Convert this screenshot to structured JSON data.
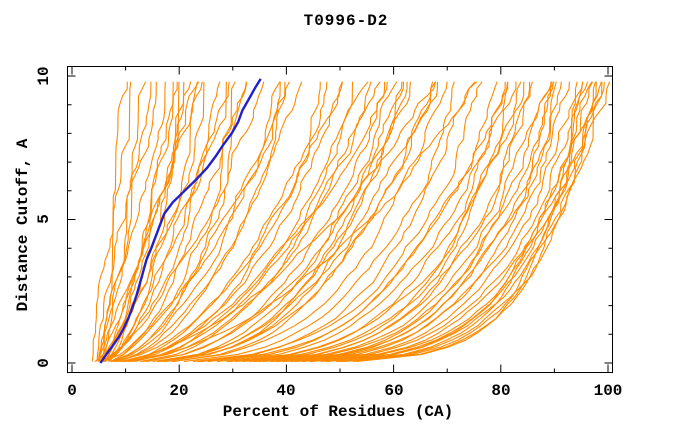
{
  "title": "T0996-D2",
  "axes": {
    "x": {
      "label": "Percent of Residues (CA)",
      "tick_labels": [
        "0",
        "20",
        "40",
        "60",
        "80",
        "100"
      ],
      "tick_values": [
        0,
        20,
        40,
        60,
        80,
        100
      ],
      "minor_tick_values": [
        10,
        30,
        50,
        70,
        90
      ]
    },
    "y": {
      "label": "Distance Cutoff, A",
      "tick_labels": [
        "0",
        "5",
        "10"
      ],
      "tick_values": [
        0,
        5,
        10
      ],
      "minor_tick_values": [
        1,
        2,
        3,
        4,
        6,
        7,
        8,
        9
      ]
    }
  },
  "colors": {
    "background": "#ffffff",
    "axis": "#000000",
    "orange_curves": "#ff8a00",
    "blue_curve": "#2121cc"
  },
  "chart_data": {
    "type": "line",
    "title": "T0996-D2",
    "xlabel": "Percent of Residues (CA)",
    "ylabel": "Distance Cutoff, A",
    "xlim": [
      0,
      100
    ],
    "ylim": [
      0,
      10
    ],
    "grid": false,
    "legend": false,
    "x_major_ticks": [
      0,
      20,
      40,
      60,
      80,
      100
    ],
    "x_minor_ticks": [
      10,
      30,
      50,
      70,
      90
    ],
    "y_major_ticks": [
      0,
      5,
      10
    ],
    "y_minor_ticks": [
      1,
      2,
      3,
      4,
      6,
      7,
      8,
      9
    ],
    "cutoff_max": 9.9,
    "blue_curve": {
      "color": "#2121cc",
      "points_cutoff_percent": [
        [
          0,
          5.3
        ],
        [
          0.3,
          6.4
        ],
        [
          0.6,
          7.6
        ],
        [
          0.9,
          8.7
        ],
        [
          1.2,
          9.6
        ],
        [
          1.6,
          10.6
        ],
        [
          2.0,
          11.4
        ],
        [
          2.4,
          12.1
        ],
        [
          2.8,
          12.7
        ],
        [
          3.2,
          13.3
        ],
        [
          3.6,
          13.9
        ],
        [
          4.0,
          14.8
        ],
        [
          4.4,
          15.6
        ],
        [
          4.8,
          16.4
        ],
        [
          5.2,
          17.2
        ],
        [
          5.6,
          18.8
        ],
        [
          6.0,
          21.0
        ],
        [
          6.4,
          23.2
        ],
        [
          6.8,
          25.2
        ],
        [
          7.2,
          26.8
        ],
        [
          7.6,
          28.2
        ],
        [
          8.0,
          29.8
        ],
        [
          8.4,
          31.0
        ],
        [
          8.8,
          31.8
        ],
        [
          9.2,
          33.0
        ],
        [
          9.6,
          34.2
        ],
        [
          9.9,
          35.2
        ]
      ]
    },
    "orange_curves": {
      "color": "#ff8a00",
      "curve_model": "percent(c) = p0 + (pEnd - p0) * (c / 9.9)^k  (+ small jitter), c = 0.05..9.9",
      "param_format": [
        "p0_percent_at_cutoff0",
        "pEnd_percent_at_cutoff_max",
        "shape_exponent_k",
        "jitter_seed"
      ],
      "curves": [
        [
          5,
          11.5,
          1.1,
          1
        ],
        [
          5.5,
          13,
          0.95,
          2
        ],
        [
          4.5,
          14,
          1.2,
          3
        ],
        [
          6,
          15,
          0.9,
          4
        ],
        [
          5,
          16.5,
          1.05,
          5
        ],
        [
          4,
          12.5,
          1.0,
          6
        ],
        [
          5,
          19,
          0.8,
          7
        ],
        [
          6,
          21,
          0.7,
          8
        ],
        [
          4.5,
          22,
          0.75,
          9
        ],
        [
          5.5,
          23.5,
          0.65,
          10
        ],
        [
          6.5,
          25,
          0.8,
          11
        ],
        [
          5,
          26,
          0.6,
          12
        ],
        [
          4,
          27,
          0.7,
          13
        ],
        [
          6,
          28.5,
          0.62,
          14
        ],
        [
          5.5,
          20,
          0.72,
          15
        ],
        [
          5,
          24,
          0.68,
          16
        ],
        [
          5,
          30,
          0.6,
          17
        ],
        [
          6,
          32,
          0.55,
          18
        ],
        [
          4.5,
          33,
          0.65,
          19
        ],
        [
          5.5,
          35,
          0.5,
          20
        ],
        [
          6,
          36.5,
          0.58,
          21
        ],
        [
          5,
          38,
          0.52,
          22
        ],
        [
          4.5,
          40,
          0.6,
          23
        ],
        [
          6.5,
          42,
          0.55,
          24
        ],
        [
          5,
          31,
          0.62,
          25
        ],
        [
          5.5,
          39,
          0.5,
          26
        ],
        [
          5,
          45,
          0.5,
          27
        ],
        [
          6,
          47,
          0.45,
          28
        ],
        [
          5.5,
          49,
          0.42,
          29
        ],
        [
          4.5,
          50,
          0.48,
          30
        ],
        [
          6,
          51.5,
          0.4,
          31
        ],
        [
          5,
          53,
          0.45,
          32
        ],
        [
          5,
          55,
          0.42,
          33
        ],
        [
          6,
          56,
          0.38,
          34
        ],
        [
          5.5,
          57.5,
          0.35,
          35
        ],
        [
          4.5,
          59,
          0.4,
          36
        ],
        [
          6,
          60,
          0.32,
          37
        ],
        [
          5,
          61,
          0.36,
          38
        ],
        [
          5.5,
          62.5,
          0.3,
          39
        ],
        [
          6.5,
          64,
          0.34,
          40
        ],
        [
          5,
          65,
          0.31,
          41
        ],
        [
          5.5,
          66.5,
          0.35,
          42
        ],
        [
          6,
          68,
          0.3,
          43
        ],
        [
          5,
          70,
          0.33,
          44
        ],
        [
          5,
          72,
          0.3,
          45
        ],
        [
          5.5,
          74,
          0.28,
          46
        ],
        [
          6,
          76,
          0.26,
          47
        ],
        [
          5,
          78,
          0.27,
          48
        ],
        [
          5.5,
          80,
          0.25,
          49
        ],
        [
          6,
          81,
          0.24,
          50
        ],
        [
          4.5,
          82,
          0.26,
          51
        ],
        [
          5,
          83,
          0.22,
          52
        ],
        [
          5.5,
          84,
          0.23,
          53
        ],
        [
          6,
          85,
          0.21,
          54
        ],
        [
          5,
          86,
          0.22,
          55
        ],
        [
          5.5,
          87,
          0.2,
          56
        ],
        [
          6,
          88,
          0.21,
          57
        ],
        [
          4.5,
          89,
          0.19,
          58
        ],
        [
          5,
          90,
          0.2,
          59
        ],
        [
          5.5,
          90.5,
          0.18,
          60
        ],
        [
          6,
          91,
          0.19,
          61
        ],
        [
          5,
          92,
          0.18,
          62
        ],
        [
          5.5,
          92.5,
          0.17,
          63
        ],
        [
          6,
          93,
          0.18,
          64
        ],
        [
          5,
          94,
          0.16,
          65
        ],
        [
          5.5,
          94.5,
          0.17,
          66
        ],
        [
          6,
          95,
          0.16,
          67
        ],
        [
          5,
          96,
          0.15,
          68
        ],
        [
          5.5,
          96.5,
          0.16,
          69
        ],
        [
          6,
          97,
          0.15,
          70
        ],
        [
          5,
          97.5,
          0.14,
          71
        ],
        [
          5.5,
          98,
          0.15,
          72
        ],
        [
          6,
          98.5,
          0.14,
          73
        ],
        [
          5,
          99,
          0.13,
          74
        ],
        [
          5.5,
          99.5,
          0.14,
          75
        ],
        [
          6,
          100,
          0.13,
          76
        ],
        [
          5,
          75,
          0.5,
          77
        ],
        [
          5.5,
          68,
          0.55,
          78
        ],
        [
          6,
          58,
          0.5,
          79
        ]
      ]
    }
  }
}
